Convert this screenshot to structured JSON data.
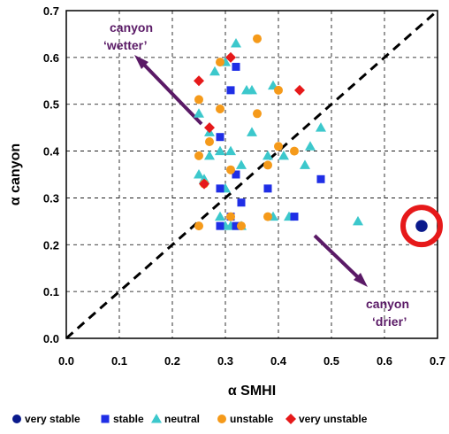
{
  "chart_data": {
    "type": "scatter",
    "title": "",
    "xlabel": "α SMHI",
    "ylabel": "α canyon",
    "xlim": [
      0,
      0.7
    ],
    "ylim": [
      0,
      0.7
    ],
    "x_ticks": [
      "0.0",
      "0.1",
      "0.2",
      "0.3",
      "0.4",
      "0.5",
      "0.6",
      "0.7"
    ],
    "y_ticks": [
      "0.0",
      "0.1",
      "0.2",
      "0.3",
      "0.4",
      "0.5",
      "0.6",
      "0.7"
    ],
    "grid": true,
    "reference_line": "1:1 diagonal, dashed",
    "legend_position": "bottom",
    "series": [
      {
        "name": "very stable",
        "marker": "circle",
        "color": "#0a1a8c",
        "points": [
          [
            0.67,
            0.24
          ]
        ]
      },
      {
        "name": "stable",
        "marker": "square",
        "color": "#1f2ee6",
        "points": [
          [
            0.29,
            0.43
          ],
          [
            0.31,
            0.53
          ],
          [
            0.32,
            0.58
          ],
          [
            0.29,
            0.32
          ],
          [
            0.32,
            0.35
          ],
          [
            0.33,
            0.29
          ],
          [
            0.29,
            0.24
          ],
          [
            0.31,
            0.26
          ],
          [
            0.32,
            0.24
          ],
          [
            0.38,
            0.32
          ],
          [
            0.43,
            0.26
          ],
          [
            0.48,
            0.34
          ]
        ]
      },
      {
        "name": "neutral",
        "marker": "triangle",
        "color": "#3cc8cc",
        "points": [
          [
            0.32,
            0.63
          ],
          [
            0.28,
            0.57
          ],
          [
            0.3,
            0.59
          ],
          [
            0.34,
            0.53
          ],
          [
            0.35,
            0.53
          ],
          [
            0.39,
            0.54
          ],
          [
            0.25,
            0.48
          ],
          [
            0.27,
            0.44
          ],
          [
            0.35,
            0.44
          ],
          [
            0.48,
            0.45
          ],
          [
            0.29,
            0.4
          ],
          [
            0.31,
            0.4
          ],
          [
            0.38,
            0.39
          ],
          [
            0.41,
            0.39
          ],
          [
            0.46,
            0.41
          ],
          [
            0.27,
            0.39
          ],
          [
            0.25,
            0.35
          ],
          [
            0.26,
            0.34
          ],
          [
            0.33,
            0.37
          ],
          [
            0.45,
            0.37
          ],
          [
            0.3,
            0.32
          ],
          [
            0.29,
            0.26
          ],
          [
            0.3,
            0.24
          ],
          [
            0.31,
            0.24
          ],
          [
            0.33,
            0.24
          ],
          [
            0.39,
            0.26
          ],
          [
            0.42,
            0.26
          ],
          [
            0.55,
            0.25
          ]
        ]
      },
      {
        "name": "unstable",
        "marker": "circle",
        "color": "#f59a1a",
        "points": [
          [
            0.36,
            0.64
          ],
          [
            0.29,
            0.59
          ],
          [
            0.25,
            0.51
          ],
          [
            0.29,
            0.49
          ],
          [
            0.4,
            0.53
          ],
          [
            0.36,
            0.48
          ],
          [
            0.25,
            0.39
          ],
          [
            0.27,
            0.42
          ],
          [
            0.4,
            0.41
          ],
          [
            0.43,
            0.4
          ],
          [
            0.38,
            0.37
          ],
          [
            0.31,
            0.36
          ],
          [
            0.25,
            0.24
          ],
          [
            0.31,
            0.26
          ],
          [
            0.33,
            0.24
          ],
          [
            0.38,
            0.26
          ],
          [
            0.26,
            0.33
          ]
        ]
      },
      {
        "name": "very unstable",
        "marker": "diamond",
        "color": "#e6191a",
        "points": [
          [
            0.31,
            0.6
          ],
          [
            0.25,
            0.55
          ],
          [
            0.44,
            0.53
          ],
          [
            0.27,
            0.45
          ],
          [
            0.26,
            0.33
          ]
        ]
      }
    ],
    "annotations": [
      {
        "line1": "canyon",
        "line2": "‘wetter’"
      },
      {
        "line1": "canyon",
        "line2": "‘drier’"
      }
    ],
    "highlight": {
      "shape": "circle",
      "color": "#e6191a",
      "at": [
        0.67,
        0.24
      ]
    }
  }
}
